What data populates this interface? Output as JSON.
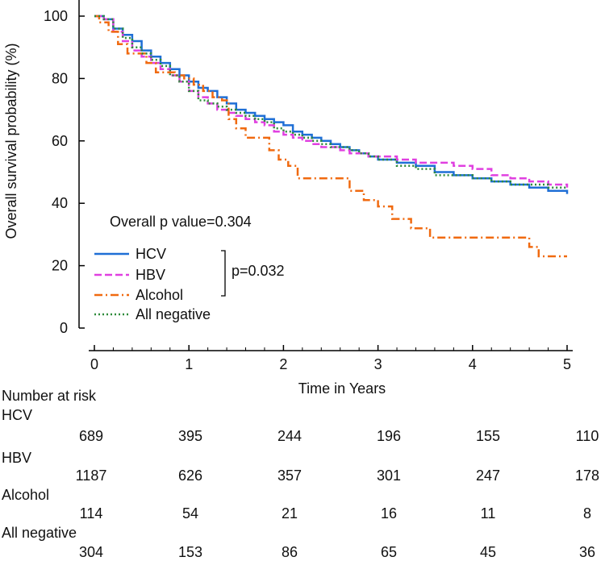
{
  "chart_data": {
    "type": "line",
    "ylabel": "Overall survival probability (%)",
    "xlabel": "Time in Years",
    "xlim": [
      0,
      5
    ],
    "ylim": [
      0,
      100
    ],
    "xticks": [
      "0",
      "1",
      "2",
      "3",
      "4",
      "5"
    ],
    "yticks": [
      "0",
      "20",
      "40",
      "60",
      "80",
      "100"
    ],
    "grid": false,
    "annotations": {
      "overall_p": "Overall p value=0.304",
      "pairwise_p": "p=0.032"
    },
    "legend": {
      "placement": "bottom-left",
      "entries": [
        "HCV",
        "HBV",
        "Alcohol",
        "All negative"
      ]
    },
    "series": [
      {
        "name": "HCV",
        "color": "#1f6fd6",
        "dash": "solid",
        "points": [
          [
            0,
            100
          ],
          [
            0.1,
            99
          ],
          [
            0.2,
            96
          ],
          [
            0.3,
            94
          ],
          [
            0.4,
            92
          ],
          [
            0.5,
            89
          ],
          [
            0.6,
            87
          ],
          [
            0.7,
            85
          ],
          [
            0.8,
            83
          ],
          [
            0.9,
            81
          ],
          [
            1.0,
            79
          ],
          [
            1.1,
            77
          ],
          [
            1.2,
            76
          ],
          [
            1.3,
            74
          ],
          [
            1.4,
            72
          ],
          [
            1.5,
            70
          ],
          [
            1.6,
            69
          ],
          [
            1.7,
            68
          ],
          [
            1.8,
            67
          ],
          [
            1.9,
            66
          ],
          [
            2.0,
            65
          ],
          [
            2.1,
            63
          ],
          [
            2.2,
            62
          ],
          [
            2.3,
            61
          ],
          [
            2.4,
            60
          ],
          [
            2.5,
            59
          ],
          [
            2.6,
            58
          ],
          [
            2.7,
            57
          ],
          [
            2.8,
            56
          ],
          [
            2.9,
            55
          ],
          [
            3.0,
            54
          ],
          [
            3.2,
            53
          ],
          [
            3.4,
            52
          ],
          [
            3.6,
            50
          ],
          [
            3.8,
            49
          ],
          [
            4.0,
            48
          ],
          [
            4.2,
            47
          ],
          [
            4.4,
            46
          ],
          [
            4.6,
            45
          ],
          [
            4.8,
            44
          ],
          [
            5.0,
            43
          ]
        ]
      },
      {
        "name": "HBV",
        "color": "#e040e0",
        "dash": "dashed",
        "points": [
          [
            0,
            100
          ],
          [
            0.1,
            99
          ],
          [
            0.2,
            95
          ],
          [
            0.3,
            92
          ],
          [
            0.4,
            89
          ],
          [
            0.5,
            87
          ],
          [
            0.6,
            85
          ],
          [
            0.7,
            83
          ],
          [
            0.8,
            81
          ],
          [
            0.9,
            79
          ],
          [
            1.0,
            76
          ],
          [
            1.1,
            74
          ],
          [
            1.2,
            72
          ],
          [
            1.3,
            70
          ],
          [
            1.4,
            69
          ],
          [
            1.5,
            68
          ],
          [
            1.6,
            67
          ],
          [
            1.7,
            66
          ],
          [
            1.8,
            65
          ],
          [
            1.9,
            63
          ],
          [
            2.0,
            62
          ],
          [
            2.1,
            61
          ],
          [
            2.2,
            60
          ],
          [
            2.3,
            59
          ],
          [
            2.4,
            58
          ],
          [
            2.5,
            58
          ],
          [
            2.6,
            57
          ],
          [
            2.7,
            56
          ],
          [
            2.8,
            56
          ],
          [
            2.9,
            55
          ],
          [
            3.0,
            55
          ],
          [
            3.2,
            54
          ],
          [
            3.4,
            53
          ],
          [
            3.6,
            53
          ],
          [
            3.8,
            52
          ],
          [
            4.0,
            51
          ],
          [
            4.2,
            49
          ],
          [
            4.4,
            48
          ],
          [
            4.6,
            47
          ],
          [
            4.8,
            46
          ],
          [
            5.0,
            45
          ]
        ]
      },
      {
        "name": "Alcohol",
        "color": "#f06a10",
        "dash": "dashdot",
        "points": [
          [
            0,
            100
          ],
          [
            0.05,
            98
          ],
          [
            0.15,
            95
          ],
          [
            0.25,
            91
          ],
          [
            0.35,
            88
          ],
          [
            0.45,
            88
          ],
          [
            0.55,
            85
          ],
          [
            0.65,
            82
          ],
          [
            0.75,
            82
          ],
          [
            0.85,
            81
          ],
          [
            0.95,
            80
          ],
          [
            1.05,
            78
          ],
          [
            1.15,
            76
          ],
          [
            1.25,
            74
          ],
          [
            1.35,
            73
          ],
          [
            1.42,
            67
          ],
          [
            1.5,
            64
          ],
          [
            1.6,
            61
          ],
          [
            1.75,
            61
          ],
          [
            1.85,
            57
          ],
          [
            1.95,
            54
          ],
          [
            2.05,
            52
          ],
          [
            2.15,
            48
          ],
          [
            2.3,
            48
          ],
          [
            2.45,
            48
          ],
          [
            2.7,
            44
          ],
          [
            2.85,
            41
          ],
          [
            3.0,
            39
          ],
          [
            3.15,
            35
          ],
          [
            3.35,
            32
          ],
          [
            3.55,
            29
          ],
          [
            3.8,
            29
          ],
          [
            4.1,
            29
          ],
          [
            4.45,
            29
          ],
          [
            4.6,
            26
          ],
          [
            4.7,
            23
          ],
          [
            5.0,
            23
          ]
        ]
      },
      {
        "name": "All negative",
        "color": "#2e8b3a",
        "dash": "dotted",
        "points": [
          [
            0,
            100
          ],
          [
            0.1,
            99
          ],
          [
            0.2,
            96
          ],
          [
            0.3,
            93
          ],
          [
            0.4,
            90
          ],
          [
            0.5,
            88
          ],
          [
            0.6,
            86
          ],
          [
            0.7,
            84
          ],
          [
            0.8,
            81
          ],
          [
            0.9,
            79
          ],
          [
            1.0,
            76
          ],
          [
            1.1,
            73
          ],
          [
            1.2,
            72
          ],
          [
            1.3,
            71
          ],
          [
            1.4,
            70
          ],
          [
            1.5,
            69
          ],
          [
            1.6,
            68
          ],
          [
            1.7,
            67
          ],
          [
            1.8,
            66
          ],
          [
            1.9,
            64
          ],
          [
            2.0,
            63
          ],
          [
            2.1,
            62
          ],
          [
            2.2,
            61
          ],
          [
            2.3,
            60
          ],
          [
            2.4,
            59
          ],
          [
            2.5,
            58
          ],
          [
            2.6,
            58
          ],
          [
            2.7,
            57
          ],
          [
            2.8,
            56
          ],
          [
            2.9,
            55
          ],
          [
            3.0,
            54
          ],
          [
            3.2,
            52
          ],
          [
            3.4,
            51
          ],
          [
            3.6,
            49
          ],
          [
            3.8,
            49
          ],
          [
            4.0,
            48
          ],
          [
            4.2,
            47
          ],
          [
            4.4,
            46
          ],
          [
            4.6,
            46
          ],
          [
            4.8,
            45
          ],
          [
            5.0,
            45
          ]
        ]
      }
    ]
  },
  "risk_table": {
    "title": "Number at risk",
    "rows": [
      {
        "label": "HCV",
        "values": [
          "689",
          "395",
          "244",
          "196",
          "155",
          "110"
        ]
      },
      {
        "label": "HBV",
        "values": [
          "1187",
          "626",
          "357",
          "301",
          "247",
          "178"
        ]
      },
      {
        "label": "Alcohol",
        "values": [
          "114",
          "54",
          "21",
          "16",
          "11",
          "8"
        ]
      },
      {
        "label": "All negative",
        "values": [
          "304",
          "153",
          "86",
          "65",
          "45",
          "36"
        ]
      }
    ]
  }
}
